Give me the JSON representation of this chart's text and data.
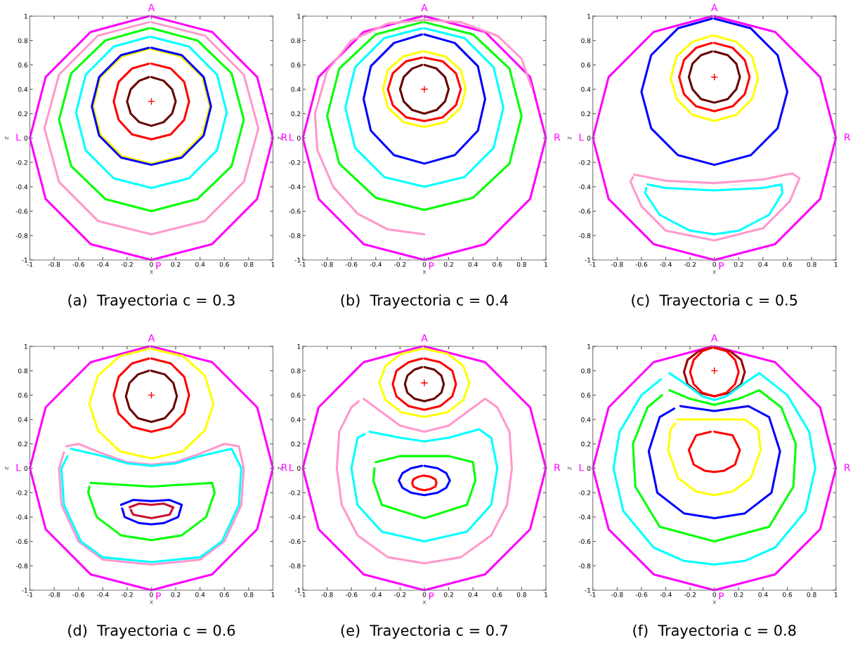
{
  "chart_data": [
    {
      "type": "line",
      "title": "(a)  Trayectoria c = 0.3",
      "xlabel": "x",
      "ylabel": "z",
      "xlim": [
        -1,
        1
      ],
      "ylim": [
        -1,
        1
      ],
      "xticks": [
        -1,
        -0.8,
        -0.6,
        -0.4,
        -0.2,
        0,
        0.2,
        0.4,
        0.6,
        0.8,
        1
      ],
      "yticks": [
        -1,
        -0.8,
        -0.6,
        -0.4,
        -0.2,
        0,
        0.2,
        0.4,
        0.6,
        0.8,
        1
      ],
      "annotations": [
        {
          "text": "A",
          "x": 0,
          "y": 1
        },
        {
          "text": "P",
          "x": 0,
          "y": -1
        },
        {
          "text": "L",
          "x": -1,
          "y": 0
        },
        {
          "text": "R",
          "x": 1,
          "y": 0
        }
      ],
      "series": [
        {
          "color": "#ff00ff",
          "x": [
            0,
            0.5,
            0.87,
            1,
            0.87,
            0.5,
            0,
            -0.5,
            -0.87,
            -1,
            -0.87,
            -0.5,
            -0.02
          ],
          "values": [
            1,
            0.87,
            0.5,
            0,
            -0.5,
            -0.87,
            -1,
            -0.87,
            -0.5,
            0,
            0.5,
            0.87,
            1
          ]
        },
        {
          "color": "#ff99cc",
          "x": [
            0,
            0.44,
            0.76,
            0.88,
            0.76,
            0.44,
            0,
            -0.44,
            -0.76,
            -0.88,
            -0.76,
            -0.44,
            -0.02
          ],
          "values": [
            0.95,
            0.84,
            0.52,
            0.08,
            -0.36,
            -0.68,
            -0.79,
            -0.68,
            -0.36,
            0.08,
            0.52,
            0.84,
            0.95
          ]
        },
        {
          "color": "#00ff00",
          "x": [
            0,
            0.38,
            0.66,
            0.76,
            0.66,
            0.38,
            0,
            -0.38,
            -0.66,
            -0.76,
            -0.66,
            -0.38,
            -0.02
          ],
          "values": [
            0.9,
            0.8,
            0.53,
            0.15,
            -0.23,
            -0.5,
            -0.6,
            -0.5,
            -0.23,
            0.15,
            0.53,
            0.8,
            0.9
          ]
        },
        {
          "color": "#00ffff",
          "x": [
            0,
            0.31,
            0.54,
            0.62,
            0.54,
            0.31,
            0,
            -0.31,
            -0.54,
            -0.62,
            -0.54,
            -0.31,
            -0.02
          ],
          "values": [
            0.83,
            0.75,
            0.52,
            0.21,
            -0.1,
            -0.33,
            -0.41,
            -0.33,
            -0.1,
            0.21,
            0.52,
            0.75,
            0.83
          ]
        },
        {
          "color": "#ffff00",
          "x": [
            0,
            0.24,
            0.42,
            0.48,
            0.42,
            0.24,
            0,
            -0.24,
            -0.42,
            -0.48,
            -0.42,
            -0.24,
            -0.02
          ],
          "values": [
            0.73,
            0.67,
            0.5,
            0.26,
            0.03,
            -0.15,
            -0.21,
            -0.15,
            0.03,
            0.26,
            0.5,
            0.67,
            0.73
          ]
        },
        {
          "color": "#0000ff",
          "x": [
            0,
            0.25,
            0.43,
            0.49,
            0.43,
            0.25,
            0,
            -0.25,
            -0.43,
            -0.49,
            -0.43,
            -0.25,
            -0.02
          ],
          "values": [
            0.74,
            0.68,
            0.5,
            0.26,
            0.02,
            -0.16,
            -0.22,
            -0.16,
            0.02,
            0.26,
            0.5,
            0.68,
            0.74
          ]
        },
        {
          "color": "#ff0000",
          "x": [
            0,
            0.16,
            0.27,
            0.31,
            0.27,
            0.16,
            0,
            -0.16,
            -0.27,
            -0.31,
            -0.27,
            -0.16,
            -0.02
          ],
          "values": [
            0.61,
            0.57,
            0.46,
            0.3,
            0.15,
            0.03,
            -0.01,
            0.03,
            0.15,
            0.3,
            0.46,
            0.57,
            0.61
          ]
        },
        {
          "color": "#660000",
          "x": [
            0,
            0.1,
            0.17,
            0.2,
            0.17,
            0.1,
            0,
            -0.1,
            -0.17,
            -0.2,
            -0.17,
            -0.1,
            -0.02
          ],
          "values": [
            0.5,
            0.47,
            0.4,
            0.3,
            0.2,
            0.13,
            0.1,
            0.13,
            0.2,
            0.3,
            0.4,
            0.47,
            0.5
          ]
        },
        {
          "type": "scatter",
          "marker": "cross",
          "color": "#ff0000",
          "x": [
            0
          ],
          "values": [
            0.3
          ]
        }
      ]
    },
    {
      "type": "line",
      "title": "(b)  Trayectoria c = 0.4",
      "xlabel": "x",
      "ylabel": "z",
      "xlim": [
        -1,
        1
      ],
      "ylim": [
        -1,
        1
      ],
      "xticks": [
        -1,
        -0.8,
        -0.6,
        -0.4,
        -0.2,
        0,
        0.2,
        0.4,
        0.6,
        0.8,
        1
      ],
      "yticks": [
        -1,
        -0.8,
        -0.6,
        -0.4,
        -0.2,
        0,
        0.2,
        0.4,
        0.6,
        0.8,
        1
      ],
      "annotations": [
        {
          "text": "A",
          "x": 0,
          "y": 1
        },
        {
          "text": "P",
          "x": 0,
          "y": -1
        },
        {
          "text": "L",
          "x": -1,
          "y": 0
        },
        {
          "text": "R",
          "x": 1,
          "y": 0
        }
      ],
      "series": [
        {
          "color": "#ff00ff",
          "x": [
            0,
            0.5,
            0.87,
            1,
            0.87,
            0.5,
            0,
            -0.5,
            -0.87,
            -1,
            -0.87,
            -0.5,
            -0.02
          ],
          "values": [
            1,
            0.87,
            0.5,
            0,
            -0.5,
            -0.87,
            -1,
            -0.87,
            -0.5,
            0,
            0.5,
            0.87,
            1
          ]
        },
        {
          "color": "#ff99cc",
          "x": [
            0.88,
            0.8,
            0.6,
            0.3,
            0,
            -0.3,
            -0.6,
            -0.8,
            -0.9,
            -0.88,
            -0.75,
            -0.55,
            -0.3,
            0
          ],
          "values": [
            0.42,
            0.65,
            0.84,
            0.95,
            0.97,
            0.94,
            0.8,
            0.55,
            0.2,
            -0.1,
            -0.4,
            -0.62,
            -0.75,
            -0.79
          ]
        },
        {
          "color": "#00ff00",
          "x": [
            0,
            0.4,
            0.7,
            0.8,
            0.7,
            0.4,
            0,
            -0.4,
            -0.7,
            -0.8,
            -0.7,
            -0.4,
            -0.02
          ],
          "values": [
            0.95,
            0.85,
            0.57,
            0.18,
            -0.21,
            -0.49,
            -0.59,
            -0.49,
            -0.21,
            0.18,
            0.57,
            0.85,
            0.95
          ]
        },
        {
          "color": "#00ffff",
          "x": [
            0,
            0.33,
            0.57,
            0.65,
            0.57,
            0.33,
            0,
            -0.33,
            -0.57,
            -0.65,
            -0.57,
            -0.33,
            -0.02
          ],
          "values": [
            0.9,
            0.82,
            0.58,
            0.25,
            -0.08,
            -0.32,
            -0.4,
            -0.32,
            -0.08,
            0.25,
            0.58,
            0.82,
            0.9
          ]
        },
        {
          "color": "#0000ff",
          "x": [
            0,
            0.25,
            0.44,
            0.5,
            0.44,
            0.25,
            0,
            -0.25,
            -0.44,
            -0.5,
            -0.44,
            -0.25,
            -0.02
          ],
          "values": [
            0.85,
            0.78,
            0.59,
            0.32,
            0.06,
            -0.14,
            -0.21,
            -0.14,
            0.06,
            0.32,
            0.59,
            0.78,
            0.85
          ]
        },
        {
          "color": "#ffff00",
          "x": [
            0,
            0.17,
            0.3,
            0.34,
            0.3,
            0.17,
            0,
            -0.17,
            -0.3,
            -0.34,
            -0.3,
            -0.17,
            -0.02
          ],
          "values": [
            0.71,
            0.67,
            0.56,
            0.4,
            0.25,
            0.13,
            0.09,
            0.13,
            0.25,
            0.4,
            0.56,
            0.67,
            0.71
          ]
        },
        {
          "color": "#ff0000",
          "x": [
            0,
            0.15,
            0.26,
            0.3,
            0.26,
            0.15,
            0,
            -0.15,
            -0.26,
            -0.3,
            -0.26,
            -0.15,
            -0.02
          ],
          "values": [
            0.66,
            0.63,
            0.53,
            0.4,
            0.27,
            0.17,
            0.14,
            0.17,
            0.27,
            0.4,
            0.53,
            0.63,
            0.66
          ]
        },
        {
          "color": "#660000",
          "x": [
            0,
            0.1,
            0.17,
            0.2,
            0.17,
            0.1,
            0,
            -0.1,
            -0.17,
            -0.2,
            -0.17,
            -0.1,
            -0.02
          ],
          "values": [
            0.6,
            0.57,
            0.5,
            0.4,
            0.3,
            0.23,
            0.2,
            0.23,
            0.3,
            0.4,
            0.5,
            0.57,
            0.6
          ]
        },
        {
          "type": "scatter",
          "marker": "cross",
          "color": "#ff0000",
          "x": [
            0
          ],
          "values": [
            0.4
          ]
        }
      ]
    },
    {
      "type": "line",
      "title": "(c)  Trayectoria c = 0.5",
      "xlabel": "x",
      "ylabel": "z",
      "xlim": [
        -1,
        1
      ],
      "ylim": [
        -1,
        1
      ],
      "xticks": [
        -1,
        -0.8,
        -0.6,
        -0.4,
        -0.2,
        0,
        0.2,
        0.4,
        0.6,
        0.8,
        1
      ],
      "yticks": [
        -1,
        -0.8,
        -0.6,
        -0.4,
        -0.2,
        0,
        0.2,
        0.4,
        0.6,
        0.8,
        1
      ],
      "annotations": [
        {
          "text": "A",
          "x": 0,
          "y": 1
        },
        {
          "text": "P",
          "x": 0,
          "y": -1
        },
        {
          "text": "L",
          "x": -1,
          "y": 0
        },
        {
          "text": "R",
          "x": 1,
          "y": 0
        }
      ],
      "series": [
        {
          "color": "#ff00ff",
          "x": [
            0,
            0.5,
            0.87,
            1,
            0.87,
            0.5,
            0,
            -0.5,
            -0.87,
            -1,
            -0.87,
            -0.5,
            -0.02
          ],
          "values": [
            1,
            0.87,
            0.5,
            0,
            -0.5,
            -0.87,
            -1,
            -0.87,
            -0.5,
            0,
            0.5,
            0.87,
            1
          ]
        },
        {
          "color": "#0000ff",
          "x": [
            0,
            0.3,
            0.52,
            0.6,
            0.52,
            0.3,
            0,
            -0.3,
            -0.52,
            -0.6,
            -0.52,
            -0.3,
            -0.02
          ],
          "values": [
            0.98,
            0.9,
            0.68,
            0.38,
            0.08,
            -0.14,
            -0.22,
            -0.14,
            0.08,
            0.38,
            0.68,
            0.9,
            0.98
          ]
        },
        {
          "color": "#ffff00",
          "x": [
            0,
            0.18,
            0.31,
            0.36,
            0.31,
            0.18,
            0,
            -0.18,
            -0.31,
            -0.36,
            -0.31,
            -0.18,
            -0.02
          ],
          "values": [
            0.84,
            0.79,
            0.67,
            0.49,
            0.32,
            0.19,
            0.14,
            0.19,
            0.32,
            0.49,
            0.67,
            0.79,
            0.84
          ]
        },
        {
          "color": "#ff0000",
          "x": [
            0,
            0.15,
            0.25,
            0.29,
            0.25,
            0.15,
            0,
            -0.15,
            -0.25,
            -0.29,
            -0.25,
            -0.15,
            -0.02
          ],
          "values": [
            0.78,
            0.74,
            0.64,
            0.5,
            0.36,
            0.26,
            0.22,
            0.26,
            0.36,
            0.5,
            0.64,
            0.74,
            0.78
          ]
        },
        {
          "color": "#660000",
          "x": [
            0,
            0.11,
            0.18,
            0.21,
            0.18,
            0.11,
            0,
            -0.11,
            -0.18,
            -0.21,
            -0.18,
            -0.11,
            -0.02
          ],
          "values": [
            0.71,
            0.68,
            0.61,
            0.5,
            0.4,
            0.32,
            0.29,
            0.32,
            0.4,
            0.5,
            0.61,
            0.68,
            0.71
          ]
        },
        {
          "color": "#ff99cc",
          "x": [
            -0.66,
            -0.4,
            0,
            0.4,
            0.64,
            0.7,
            0.62,
            0.4,
            0,
            -0.4,
            -0.6,
            -0.69,
            -0.67
          ],
          "values": [
            -0.3,
            -0.35,
            -0.37,
            -0.34,
            -0.29,
            -0.33,
            -0.52,
            -0.74,
            -0.84,
            -0.76,
            -0.56,
            -0.36,
            -0.32
          ]
        },
        {
          "color": "#00ffff",
          "x": [
            -0.55,
            -0.4,
            0,
            0.4,
            0.55,
            0.56,
            0.45,
            0.2,
            0,
            -0.2,
            -0.45,
            -0.57,
            -0.56
          ],
          "values": [
            -0.38,
            -0.41,
            -0.43,
            -0.41,
            -0.38,
            -0.45,
            -0.63,
            -0.76,
            -0.79,
            -0.76,
            -0.63,
            -0.45,
            -0.41
          ]
        },
        {
          "type": "scatter",
          "marker": "cross",
          "color": "#ff0000",
          "x": [
            0
          ],
          "values": [
            0.5
          ]
        }
      ]
    },
    {
      "type": "line",
      "title": "(d)  Trayectoria c = 0.6",
      "xlabel": "x",
      "ylabel": "z",
      "xlim": [
        -1,
        1
      ],
      "ylim": [
        -1,
        1
      ],
      "xticks": [
        -1,
        -0.8,
        -0.6,
        -0.4,
        -0.2,
        0,
        0.2,
        0.4,
        0.6,
        0.8,
        1
      ],
      "yticks": [
        -1,
        -0.8,
        -0.6,
        -0.4,
        -0.2,
        0,
        0.2,
        0.4,
        0.6,
        0.8,
        1
      ],
      "annotations": [
        {
          "text": "A",
          "x": 0,
          "y": 1
        },
        {
          "text": "P",
          "x": 0,
          "y": -1
        },
        {
          "text": "L",
          "x": -1,
          "y": 0
        },
        {
          "text": "R",
          "x": 1,
          "y": 0
        }
      ],
      "series": [
        {
          "color": "#ff00ff",
          "x": [
            0,
            0.5,
            0.87,
            1,
            0.87,
            0.5,
            0,
            -0.5,
            -0.87,
            -1,
            -0.87,
            -0.5,
            -0.02
          ],
          "values": [
            1,
            0.87,
            0.5,
            0,
            -0.5,
            -0.87,
            -1,
            -0.87,
            -0.5,
            0,
            0.5,
            0.87,
            1
          ]
        },
        {
          "color": "#ffff00",
          "x": [
            0,
            0.26,
            0.44,
            0.51,
            0.44,
            0.26,
            0,
            -0.26,
            -0.44,
            -0.51,
            -0.44,
            -0.26,
            -0.02
          ],
          "values": [
            0.98,
            0.92,
            0.76,
            0.53,
            0.31,
            0.14,
            0.08,
            0.14,
            0.31,
            0.53,
            0.76,
            0.92,
            0.98
          ]
        },
        {
          "color": "#ff0000",
          "x": [
            0,
            0.16,
            0.27,
            0.31,
            0.27,
            0.16,
            0,
            -0.16,
            -0.27,
            -0.31,
            -0.27,
            -0.16,
            -0.02
          ],
          "values": [
            0.9,
            0.86,
            0.75,
            0.6,
            0.45,
            0.34,
            0.3,
            0.34,
            0.45,
            0.6,
            0.75,
            0.86,
            0.9
          ]
        },
        {
          "color": "#660000",
          "x": [
            0,
            0.11,
            0.18,
            0.21,
            0.18,
            0.11,
            0,
            -0.11,
            -0.18,
            -0.21,
            -0.18,
            -0.11,
            -0.02
          ],
          "values": [
            0.8,
            0.77,
            0.7,
            0.59,
            0.49,
            0.41,
            0.38,
            0.41,
            0.49,
            0.59,
            0.7,
            0.77,
            0.8
          ]
        },
        {
          "color": "#ff99cc",
          "x": [
            -0.7,
            -0.6,
            -0.4,
            -0.2,
            0,
            0.2,
            0.4,
            0.6,
            0.72,
            0.76,
            0.74,
            0.6,
            0.4,
            0,
            -0.4,
            -0.6,
            -0.74,
            -0.76,
            -0.72
          ],
          "values": [
            0.18,
            0.2,
            0.12,
            0.05,
            0.03,
            0.05,
            0.12,
            0.2,
            0.18,
            0,
            -0.3,
            -0.6,
            -0.75,
            -0.79,
            -0.75,
            -0.6,
            -0.3,
            0,
            0.13
          ]
        },
        {
          "color": "#00ffff",
          "x": [
            -0.66,
            -0.4,
            -0.2,
            0,
            0.2,
            0.4,
            0.66,
            0.74,
            0.72,
            0.58,
            0.4,
            0,
            -0.4,
            -0.58,
            -0.72,
            -0.74,
            -0.69
          ],
          "values": [
            0.16,
            0.1,
            0.04,
            0.02,
            0.04,
            0.1,
            0.16,
            0,
            -0.3,
            -0.6,
            -0.73,
            -0.77,
            -0.73,
            -0.6,
            -0.3,
            0,
            0.1
          ]
        },
        {
          "color": "#00ff00",
          "x": [
            -0.5,
            0,
            0.5,
            0.52,
            0.45,
            0.25,
            0,
            -0.25,
            -0.45,
            -0.52,
            -0.51
          ],
          "values": [
            -0.12,
            -0.15,
            -0.12,
            -0.2,
            -0.4,
            -0.55,
            -0.59,
            -0.55,
            -0.4,
            -0.2,
            -0.15
          ]
        },
        {
          "color": "#0000ff",
          "x": [
            -0.25,
            -0.15,
            0,
            0.15,
            0.25,
            0.22,
            0.1,
            0,
            -0.1,
            -0.22,
            -0.24
          ],
          "values": [
            -0.3,
            -0.26,
            -0.27,
            -0.26,
            -0.3,
            -0.4,
            -0.45,
            -0.46,
            -0.45,
            -0.4,
            -0.33
          ]
        },
        {
          "color": "#cc1133",
          "x": [
            -0.18,
            -0.1,
            0,
            0.1,
            0.18,
            0.15,
            0,
            -0.15,
            -0.17
          ],
          "values": [
            -0.32,
            -0.29,
            -0.3,
            -0.29,
            -0.32,
            -0.38,
            -0.41,
            -0.38,
            -0.34
          ]
        },
        {
          "type": "scatter",
          "marker": "cross",
          "color": "#ff0000",
          "x": [
            0
          ],
          "values": [
            0.6
          ]
        }
      ]
    },
    {
      "type": "line",
      "title": "(e)  Trayectoria c = 0.7",
      "xlabel": "x",
      "ylabel": "z",
      "xlim": [
        -1,
        1
      ],
      "ylim": [
        -1,
        1
      ],
      "xticks": [
        -1,
        -0.8,
        -0.6,
        -0.4,
        -0.2,
        0,
        0.2,
        0.4,
        0.6,
        0.8,
        1
      ],
      "yticks": [
        -1,
        -0.8,
        -0.6,
        -0.4,
        -0.2,
        0,
        0.2,
        0.4,
        0.6,
        0.8,
        1
      ],
      "annotations": [
        {
          "text": "A",
          "x": 0,
          "y": 1
        },
        {
          "text": "P",
          "x": 0,
          "y": -1
        },
        {
          "text": "L",
          "x": -1,
          "y": 0
        },
        {
          "text": "R",
          "x": 1,
          "y": 0
        }
      ],
      "series": [
        {
          "color": "#ff00ff",
          "x": [
            0,
            0.5,
            0.87,
            1,
            0.87,
            0.5,
            0,
            -0.5,
            -0.87,
            -1,
            -0.87,
            -0.5,
            -0.02
          ],
          "values": [
            1,
            0.87,
            0.5,
            0,
            -0.5,
            -0.87,
            -1,
            -0.87,
            -0.5,
            0,
            0.5,
            0.87,
            1
          ]
        },
        {
          "color": "#ffff00",
          "x": [
            0,
            0.19,
            0.32,
            0.37,
            0.32,
            0.19,
            0,
            -0.19,
            -0.32,
            -0.37,
            -0.32,
            -0.19,
            -0.02
          ],
          "values": [
            0.98,
            0.94,
            0.84,
            0.7,
            0.56,
            0.46,
            0.42,
            0.46,
            0.56,
            0.7,
            0.84,
            0.94,
            0.98
          ]
        },
        {
          "color": "#ff0000",
          "x": [
            0,
            0.13,
            0.23,
            0.26,
            0.23,
            0.13,
            0,
            -0.13,
            -0.23,
            -0.26,
            -0.23,
            -0.13,
            -0.02
          ],
          "values": [
            0.9,
            0.87,
            0.8,
            0.69,
            0.59,
            0.51,
            0.48,
            0.51,
            0.59,
            0.69,
            0.8,
            0.87,
            0.9
          ]
        },
        {
          "color": "#660000",
          "x": [
            0,
            0.08,
            0.14,
            0.16,
            0.14,
            0.08,
            0,
            -0.08,
            -0.14,
            -0.16,
            -0.14,
            -0.08,
            -0.02
          ],
          "values": [
            0.83,
            0.81,
            0.76,
            0.69,
            0.62,
            0.57,
            0.55,
            0.57,
            0.62,
            0.69,
            0.76,
            0.81,
            0.83
          ]
        },
        {
          "color": "#ff99cc",
          "x": [
            -0.5,
            -0.2,
            0,
            0.2,
            0.5,
            0.6,
            0.7,
            0.72,
            0.68,
            0.55,
            0.3,
            0,
            -0.3,
            -0.55,
            -0.68,
            -0.72,
            -0.7,
            -0.6,
            -0.54
          ],
          "values": [
            0.57,
            0.35,
            0.3,
            0.35,
            0.57,
            0.5,
            0.3,
            0,
            -0.3,
            -0.55,
            -0.73,
            -0.78,
            -0.73,
            -0.55,
            -0.3,
            0,
            0.3,
            0.5,
            0.55
          ]
        },
        {
          "color": "#00ffff",
          "x": [
            -0.45,
            -0.2,
            0,
            0.2,
            0.45,
            0.55,
            0.6,
            0.55,
            0.35,
            0,
            -0.35,
            -0.55,
            -0.6,
            -0.55,
            -0.49
          ],
          "values": [
            0.3,
            0.25,
            0.22,
            0.25,
            0.32,
            0.25,
            0,
            -0.3,
            -0.52,
            -0.6,
            -0.52,
            -0.3,
            0,
            0.25,
            0.28
          ]
        },
        {
          "color": "#00ff00",
          "x": [
            -0.4,
            -0.2,
            0.2,
            0.4,
            0.42,
            0.35,
            0,
            -0.35,
            -0.42,
            -0.41
          ],
          "values": [
            0.05,
            0.1,
            0.1,
            0.05,
            -0.1,
            -0.3,
            -0.41,
            -0.3,
            -0.1,
            0
          ]
        },
        {
          "color": "#0000ff",
          "x": [
            0,
            0.11,
            0.18,
            0.21,
            0.18,
            0.11,
            0,
            -0.11,
            -0.18,
            -0.21,
            -0.18,
            -0.11,
            -0.02
          ],
          "values": [
            0.02,
            0,
            -0.04,
            -0.1,
            -0.16,
            -0.2,
            -0.22,
            -0.2,
            -0.16,
            -0.1,
            -0.04,
            0,
            0.02
          ]
        },
        {
          "color": "#ff0000",
          "x": [
            0,
            0.05,
            0.09,
            0.1,
            0.09,
            0.05,
            0,
            -0.05,
            -0.09,
            -0.1,
            -0.09,
            -0.05,
            -0.01
          ],
          "values": [
            -0.06,
            -0.07,
            -0.09,
            -0.12,
            -0.15,
            -0.17,
            -0.18,
            -0.17,
            -0.15,
            -0.12,
            -0.09,
            -0.07,
            -0.06
          ]
        },
        {
          "type": "scatter",
          "marker": "cross",
          "color": "#ff0000",
          "x": [
            0
          ],
          "values": [
            0.7
          ]
        }
      ]
    },
    {
      "type": "line",
      "title": "(f)  Trayectoria c = 0.8",
      "xlabel": "x",
      "ylabel": "z",
      "xlim": [
        -1,
        1
      ],
      "ylim": [
        -1,
        1
      ],
      "xticks": [
        -1,
        -0.8,
        -0.6,
        -0.4,
        -0.2,
        0,
        0.2,
        0.4,
        0.6,
        0.8,
        1
      ],
      "yticks": [
        -1,
        -0.8,
        -0.6,
        -0.4,
        -0.2,
        0,
        0.2,
        0.4,
        0.6,
        0.8,
        1
      ],
      "annotations": [
        {
          "text": "A",
          "x": 0,
          "y": 1
        },
        {
          "text": "P",
          "x": 0,
          "y": -1
        },
        {
          "text": "L",
          "x": -1,
          "y": 0
        },
        {
          "text": "R",
          "x": 1,
          "y": 0
        }
      ],
      "series": [
        {
          "color": "#ff00ff",
          "x": [
            0,
            0.5,
            0.87,
            1,
            0.87,
            0.5,
            0,
            -0.5,
            -0.87,
            -1,
            -0.87,
            -0.5,
            -0.02
          ],
          "values": [
            1,
            0.87,
            0.5,
            0,
            -0.5,
            -0.87,
            -1,
            -0.87,
            -0.5,
            0,
            0.5,
            0.87,
            1
          ]
        },
        {
          "color": "#990000",
          "x": [
            0,
            0.13,
            0.22,
            0.25,
            0.22,
            0.13,
            0,
            -0.13,
            -0.22,
            -0.25,
            -0.22,
            -0.13,
            -0.02
          ],
          "values": [
            0.99,
            0.96,
            0.89,
            0.79,
            0.69,
            0.62,
            0.59,
            0.62,
            0.69,
            0.79,
            0.89,
            0.96,
            0.99
          ]
        },
        {
          "color": "#ff0000",
          "x": [
            0,
            0.1,
            0.17,
            0.2,
            0.17,
            0.1,
            0,
            -0.1,
            -0.17,
            -0.2,
            -0.17,
            -0.1,
            -0.02
          ],
          "values": [
            0.99,
            0.96,
            0.89,
            0.79,
            0.69,
            0.62,
            0.59,
            0.62,
            0.69,
            0.79,
            0.89,
            0.96,
            0.99
          ]
        },
        {
          "color": "#00ffff",
          "x": [
            -0.37,
            -0.25,
            -0.1,
            0,
            0.1,
            0.25,
            0.37,
            0.6,
            0.78,
            0.83,
            0.75,
            0.5,
            0.25,
            0,
            -0.25,
            -0.5,
            -0.75,
            -0.83,
            -0.78,
            -0.6,
            -0.44
          ],
          "values": [
            0.78,
            0.7,
            0.59,
            0.56,
            0.59,
            0.7,
            0.78,
            0.6,
            0.3,
            0,
            -0.35,
            -0.65,
            -0.76,
            -0.79,
            -0.76,
            -0.65,
            -0.35,
            0,
            0.3,
            0.6,
            0.73
          ]
        },
        {
          "color": "#00ff00",
          "x": [
            -0.37,
            -0.2,
            0,
            0.2,
            0.37,
            0.55,
            0.67,
            0.65,
            0.45,
            0,
            -0.45,
            -0.65,
            -0.67,
            -0.55,
            -0.43
          ],
          "values": [
            0.64,
            0.57,
            0.52,
            0.57,
            0.64,
            0.5,
            0.2,
            -0.15,
            -0.48,
            -0.6,
            -0.48,
            -0.15,
            0.2,
            0.5,
            0.6
          ]
        },
        {
          "color": "#0000ff",
          "x": [
            -0.28,
            0,
            0.28,
            0.45,
            0.54,
            0.47,
            0.25,
            0,
            -0.25,
            -0.47,
            -0.54,
            -0.45,
            -0.33
          ],
          "values": [
            0.51,
            0.47,
            0.51,
            0.42,
            0.14,
            -0.2,
            -0.37,
            -0.41,
            -0.37,
            -0.2,
            0.14,
            0.42,
            0.49
          ]
        },
        {
          "color": "#ffff00",
          "x": [
            -0.3,
            0,
            0.25,
            0.36,
            0.38,
            0.3,
            0.15,
            0,
            -0.15,
            -0.3,
            -0.38,
            -0.36,
            -0.32
          ],
          "values": [
            0.4,
            0.4,
            0.4,
            0.32,
            0.15,
            -0.08,
            -0.19,
            -0.22,
            -0.19,
            -0.08,
            0.15,
            0.32,
            0.37
          ]
        },
        {
          "color": "#ff0000",
          "x": [
            0,
            0.15,
            0.21,
            0.17,
            0.08,
            0,
            -0.08,
            -0.17,
            -0.21,
            -0.15,
            -0.03
          ],
          "values": [
            0.3,
            0.27,
            0.15,
            0.03,
            -0.02,
            -0.03,
            -0.02,
            0.03,
            0.15,
            0.27,
            0.3
          ]
        },
        {
          "type": "scatter",
          "marker": "cross",
          "color": "#ff0000",
          "x": [
            0
          ],
          "values": [
            0.8
          ]
        }
      ]
    }
  ]
}
